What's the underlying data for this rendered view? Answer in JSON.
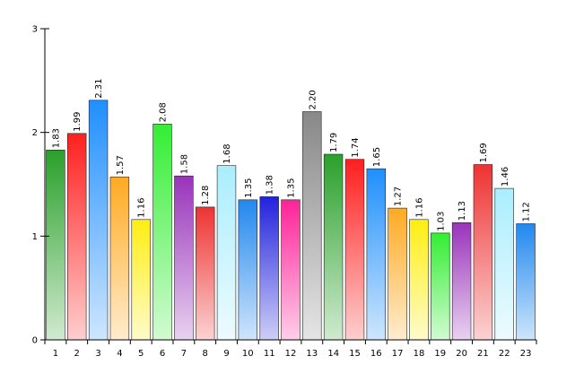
{
  "chart_data": {
    "type": "bar",
    "title": "",
    "xlabel": "",
    "ylabel": "",
    "ylim": [
      0,
      3
    ],
    "yticks": [
      0,
      1,
      2,
      3
    ],
    "grid": false,
    "legend": "none",
    "categories": [
      "1",
      "2",
      "3",
      "4",
      "5",
      "6",
      "7",
      "8",
      "9",
      "10",
      "11",
      "12",
      "13",
      "14",
      "15",
      "16",
      "17",
      "18",
      "19",
      "20",
      "21",
      "22",
      "23"
    ],
    "values": [
      1.83,
      1.99,
      2.31,
      1.57,
      1.16,
      2.08,
      1.58,
      1.28,
      1.68,
      1.35,
      1.38,
      1.35,
      2.2,
      1.79,
      1.74,
      1.65,
      1.27,
      1.16,
      1.03,
      1.13,
      1.69,
      1.46,
      1.12
    ],
    "value_labels": [
      "1.83",
      "1.99",
      "2.31",
      "1.57",
      "1.16",
      "2.08",
      "1.58",
      "1.28",
      "1.68",
      "1.35",
      "1.38",
      "1.35",
      "2.20",
      "1.79",
      "1.74",
      "1.65",
      "1.27",
      "1.16",
      "1.03",
      "1.13",
      "1.69",
      "1.46",
      "1.12"
    ],
    "bar_colors": [
      "#2aa02a",
      "#ff1f1f",
      "#1f8fff",
      "#ffaa22",
      "#ffee11",
      "#33ee33",
      "#9933bb",
      "#ee3333",
      "#aaeeff",
      "#2288ee",
      "#2222dd",
      "#ff2299",
      "#888888",
      "#2aa02a",
      "#ff1f1f",
      "#1f8fff",
      "#ffaa22",
      "#ffee11",
      "#33ee33",
      "#9933bb",
      "#ee3333",
      "#aaeeff",
      "#2288ee"
    ]
  }
}
